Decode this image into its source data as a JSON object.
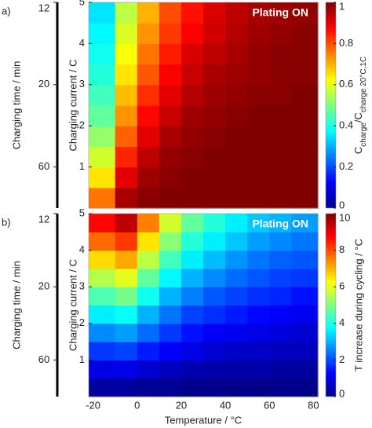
{
  "chart_data": [
    {
      "type": "heatmap",
      "panel": "a)",
      "annotation": "Plating ON",
      "ylabel": "Charging current  /  C",
      "y2label": "Charging time  /  min",
      "y2scale": "reciprocal",
      "y2lim": [
        null,
        12
      ],
      "y2ticks": [
        12,
        20,
        60
      ],
      "x": [
        -15,
        -5,
        5,
        15,
        25,
        35,
        45,
        55,
        65,
        75
      ],
      "y": [
        0.25,
        0.75,
        1.25,
        1.75,
        2.25,
        2.75,
        3.25,
        3.75,
        4.25,
        4.75
      ],
      "z": [
        [
          0.76,
          0.96,
          0.99,
          1,
          1,
          1,
          1,
          1,
          1,
          1
        ],
        [
          0.65,
          0.9,
          0.97,
          0.99,
          1,
          1,
          1,
          1,
          1,
          1
        ],
        [
          0.58,
          0.84,
          0.94,
          0.98,
          0.99,
          1,
          1,
          1,
          1,
          1
        ],
        [
          0.52,
          0.78,
          0.9,
          0.96,
          0.98,
          0.99,
          1,
          1,
          1,
          1
        ],
        [
          0.47,
          0.73,
          0.87,
          0.93,
          0.97,
          0.98,
          0.99,
          1,
          1,
          1
        ],
        [
          0.44,
          0.69,
          0.83,
          0.9,
          0.95,
          0.97,
          0.98,
          0.99,
          0.99,
          1
        ],
        [
          0.41,
          0.65,
          0.79,
          0.88,
          0.93,
          0.96,
          0.97,
          0.98,
          0.99,
          0.99
        ],
        [
          0.39,
          0.62,
          0.76,
          0.85,
          0.91,
          0.94,
          0.96,
          0.98,
          0.99,
          0.99
        ],
        [
          0.37,
          0.59,
          0.73,
          0.82,
          0.88,
          0.92,
          0.95,
          0.97,
          0.98,
          0.99
        ],
        [
          0.35,
          0.56,
          0.7,
          0.8,
          0.86,
          0.91,
          0.94,
          0.96,
          0.97,
          0.98
        ]
      ],
      "xlim": [
        -22,
        82
      ],
      "ylim": [
        0,
        5
      ],
      "yticks": [
        1,
        2,
        3,
        4,
        5
      ],
      "clim": [
        0,
        1
      ],
      "cticks": [
        0,
        0.2,
        0.4,
        0.6,
        0.8,
        1
      ],
      "colormap": "jet",
      "colorbar_label": [
        "C",
        "charge",
        "/C",
        "charge 20°C,1C"
      ]
    },
    {
      "type": "heatmap",
      "panel": "b)",
      "annotation": "Plating ON",
      "ylabel": "Charging current  /  C",
      "xlabel": "Temperature  /  °C",
      "y2label": "Charging time  /  min",
      "y2scale": "reciprocal",
      "y2lim": [
        null,
        12
      ],
      "y2ticks": [
        12,
        20,
        60
      ],
      "x": [
        -15,
        -5,
        5,
        15,
        25,
        35,
        45,
        55,
        65,
        75
      ],
      "y": [
        0.25,
        0.75,
        1.25,
        1.75,
        2.25,
        2.75,
        3.25,
        3.75,
        4.25,
        4.75
      ],
      "z": [
        [
          0.3,
          0.3,
          0.2,
          0.2,
          0.1,
          0.1,
          0.1,
          0.1,
          0.1,
          0.1
        ],
        [
          1.0,
          1.0,
          0.8,
          0.6,
          0.5,
          0.4,
          0.4,
          0.4,
          0.3,
          0.3
        ],
        [
          1.8,
          1.9,
          1.5,
          1.2,
          1.0,
          0.8,
          0.7,
          0.7,
          0.6,
          0.6
        ],
        [
          2.6,
          2.8,
          2.3,
          1.8,
          1.4,
          1.2,
          1.1,
          1.0,
          0.9,
          0.8
        ],
        [
          3.6,
          3.8,
          3.0,
          2.4,
          1.9,
          1.7,
          1.5,
          1.3,
          1.2,
          1.1
        ],
        [
          4.5,
          4.9,
          3.9,
          3.0,
          2.5,
          2.1,
          1.9,
          1.7,
          1.6,
          1.4
        ],
        [
          5.5,
          6.0,
          4.7,
          3.7,
          3.0,
          2.6,
          2.3,
          2.1,
          1.9,
          1.8
        ],
        [
          6.6,
          7.1,
          5.6,
          4.4,
          3.6,
          3.1,
          2.7,
          2.4,
          2.2,
          2.1
        ],
        [
          7.7,
          8.2,
          6.5,
          5.1,
          4.1,
          3.6,
          3.2,
          2.8,
          2.6,
          2.4
        ],
        [
          8.7,
          9.4,
          7.5,
          5.8,
          4.7,
          4.1,
          3.6,
          3.2,
          3.0,
          2.8
        ]
      ],
      "xlim": [
        -22,
        82
      ],
      "ylim": [
        0,
        5
      ],
      "xticks": [
        -20,
        0,
        20,
        40,
        60,
        80
      ],
      "yticks": [
        1,
        2,
        3,
        4,
        5
      ],
      "clim": [
        0,
        10
      ],
      "cticks": [
        0,
        2,
        4,
        6,
        8,
        10
      ],
      "colormap": "jet",
      "colorbar_label": "T increase during cycling  /  °C"
    }
  ]
}
